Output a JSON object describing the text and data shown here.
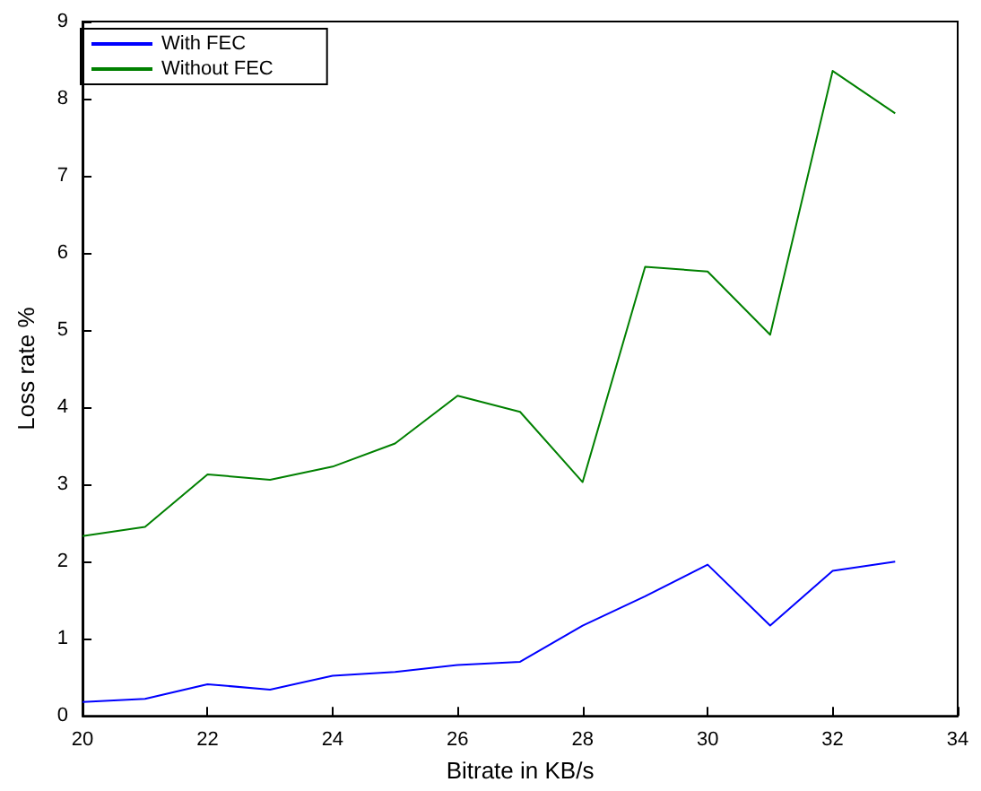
{
  "chart_data": {
    "type": "line",
    "xlabel": "Bitrate in KB/s",
    "ylabel": "Loss rate %",
    "x": [
      20,
      21,
      22,
      23,
      24,
      25,
      26,
      27,
      28,
      29,
      30,
      31,
      32,
      33
    ],
    "series": [
      {
        "name": "With FEC",
        "color": "#0000ff",
        "values": [
          0.18,
          0.22,
          0.41,
          0.34,
          0.52,
          0.57,
          0.66,
          0.7,
          1.17,
          1.55,
          1.96,
          1.17,
          1.88,
          2.0
        ]
      },
      {
        "name": "Without FEC",
        "color": "#008000",
        "values": [
          2.33,
          2.45,
          3.13,
          3.06,
          3.23,
          3.53,
          4.15,
          3.94,
          3.03,
          5.82,
          5.76,
          4.94,
          8.36,
          7.81
        ]
      }
    ],
    "xlim": [
      20,
      34
    ],
    "xticks": [
      20,
      22,
      24,
      26,
      28,
      30,
      32,
      34
    ],
    "ylim": [
      0,
      9
    ],
    "yticks": [
      0,
      1,
      2,
      3,
      4,
      5,
      6,
      7,
      8,
      9
    ],
    "grid": false,
    "legend": "top left",
    "marker": "none",
    "line_style": "solid"
  }
}
